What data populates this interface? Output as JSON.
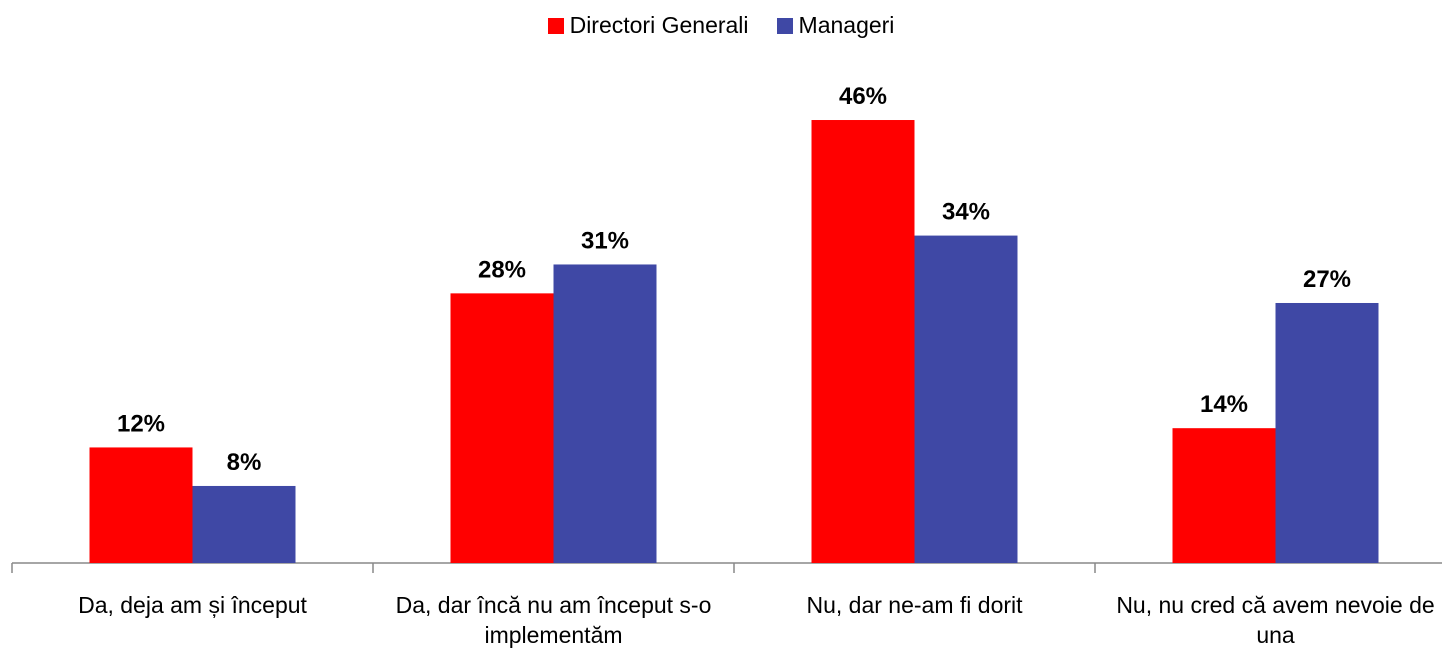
{
  "chart_data": {
    "type": "bar",
    "categories": [
      "Da, deja am și început",
      "Da, dar încă nu am început s-o implementăm",
      "Nu, dar ne-am fi dorit",
      "Nu, nu cred că avem nevoie de una"
    ],
    "series": [
      {
        "name": "Directori Generali",
        "color": "#ff0000",
        "values": [
          12,
          28,
          46,
          14
        ],
        "value_labels": [
          "12%",
          "28%",
          "46%",
          "14%"
        ]
      },
      {
        "name": "Manageri",
        "color": "#3f48a5",
        "values": [
          8,
          31,
          34,
          27
        ],
        "value_labels": [
          "8%",
          "31%",
          "34%",
          "27%"
        ]
      }
    ]
  }
}
